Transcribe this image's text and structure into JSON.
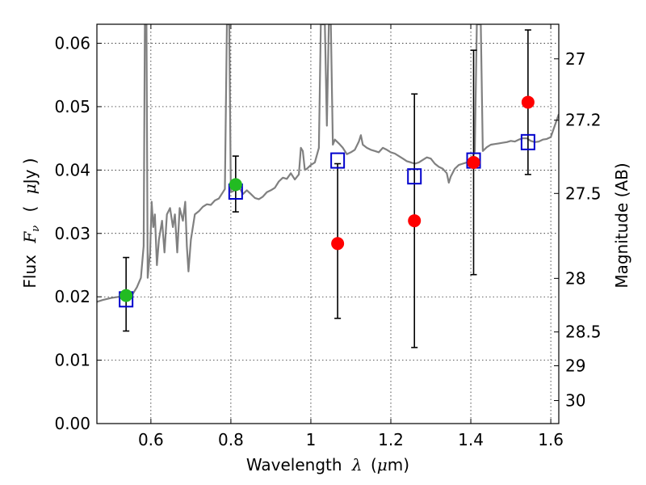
{
  "chart_data": {
    "type": "scatter",
    "xlabel": "Wavelength",
    "xlabel_symbol": "λ",
    "xlabel_unit_open": "(",
    "xlabel_unit_mu": "μ",
    "xlabel_unit_rest": "m)",
    "ylabel_prefix": "Flux",
    "ylabel_symbol": "F",
    "ylabel_subscript": "ν",
    "ylabel_unit_open": "(",
    "ylabel_unit_mu": "μ",
    "ylabel_unit_rest": "Jy )",
    "y2label": "Magnitude (AB)",
    "xlim": [
      0.465,
      1.62
    ],
    "ylim": [
      0.0,
      0.063
    ],
    "grid": true,
    "x_ticks": [
      {
        "value": 0.6,
        "label": "0.6"
      },
      {
        "value": 0.8,
        "label": "0.8"
      },
      {
        "value": 1.0,
        "label": "1"
      },
      {
        "value": 1.2,
        "label": "1.2"
      },
      {
        "value": 1.4,
        "label": "1.4"
      },
      {
        "value": 1.6,
        "label": "1.6"
      }
    ],
    "y_ticks": [
      {
        "value": 0.0,
        "label": "0.00"
      },
      {
        "value": 0.01,
        "label": "0.01"
      },
      {
        "value": 0.02,
        "label": "0.02"
      },
      {
        "value": 0.03,
        "label": "0.03"
      },
      {
        "value": 0.04,
        "label": "0.04"
      },
      {
        "value": 0.05,
        "label": "0.05"
      },
      {
        "value": 0.06,
        "label": "0.06"
      }
    ],
    "y2_ticks": [
      {
        "mag": 27.0,
        "label": "27"
      },
      {
        "mag": 27.2,
        "label": "27.2"
      },
      {
        "mag": 27.5,
        "label": "27.5"
      },
      {
        "mag": 28.0,
        "label": "28"
      },
      {
        "mag": 28.5,
        "label": "28.5"
      },
      {
        "mag": 29.0,
        "label": "29"
      },
      {
        "mag": 30.0,
        "label": "30"
      }
    ],
    "colors": {
      "spectrum": "#808080",
      "green_points": "#22bb22",
      "red_points": "#ff0000",
      "model_squares": "#0000cc",
      "error_bars": "#000000"
    },
    "series": [
      {
        "name": "model spectrum",
        "kind": "line",
        "points": [
          [
            0.465,
            0.0192
          ],
          [
            0.48,
            0.0195
          ],
          [
            0.5,
            0.0198
          ],
          [
            0.52,
            0.02
          ],
          [
            0.54,
            0.0201
          ],
          [
            0.555,
            0.0205
          ],
          [
            0.565,
            0.0215
          ],
          [
            0.575,
            0.023
          ],
          [
            0.582,
            0.028
          ],
          [
            0.585,
            0.063
          ],
          [
            0.589,
            0.063
          ],
          [
            0.592,
            0.023
          ],
          [
            0.598,
            0.027
          ],
          [
            0.602,
            0.035
          ],
          [
            0.606,
            0.031
          ],
          [
            0.61,
            0.033
          ],
          [
            0.615,
            0.025
          ],
          [
            0.62,
            0.029
          ],
          [
            0.628,
            0.032
          ],
          [
            0.634,
            0.027
          ],
          [
            0.64,
            0.033
          ],
          [
            0.648,
            0.034
          ],
          [
            0.655,
            0.031
          ],
          [
            0.66,
            0.033
          ],
          [
            0.666,
            0.027
          ],
          [
            0.672,
            0.034
          ],
          [
            0.68,
            0.032
          ],
          [
            0.686,
            0.035
          ],
          [
            0.69,
            0.028
          ],
          [
            0.694,
            0.024
          ],
          [
            0.7,
            0.029
          ],
          [
            0.71,
            0.033
          ],
          [
            0.72,
            0.0335
          ],
          [
            0.73,
            0.0342
          ],
          [
            0.74,
            0.0346
          ],
          [
            0.75,
            0.0345
          ],
          [
            0.76,
            0.0352
          ],
          [
            0.77,
            0.0355
          ],
          [
            0.78,
            0.0365
          ],
          [
            0.785,
            0.037
          ],
          [
            0.79,
            0.063
          ],
          [
            0.796,
            0.063
          ],
          [
            0.8,
            0.0365
          ],
          [
            0.81,
            0.0368
          ],
          [
            0.82,
            0.0374
          ],
          [
            0.83,
            0.0362
          ],
          [
            0.84,
            0.0368
          ],
          [
            0.85,
            0.0362
          ],
          [
            0.86,
            0.0356
          ],
          [
            0.87,
            0.0354
          ],
          [
            0.88,
            0.0358
          ],
          [
            0.89,
            0.0365
          ],
          [
            0.9,
            0.0368
          ],
          [
            0.91,
            0.0372
          ],
          [
            0.92,
            0.0382
          ],
          [
            0.93,
            0.0388
          ],
          [
            0.94,
            0.0386
          ],
          [
            0.95,
            0.0395
          ],
          [
            0.96,
            0.0385
          ],
          [
            0.97,
            0.0393
          ],
          [
            0.975,
            0.0435
          ],
          [
            0.98,
            0.043
          ],
          [
            0.985,
            0.04
          ],
          [
            0.99,
            0.0402
          ],
          [
            1.0,
            0.0408
          ],
          [
            1.01,
            0.0412
          ],
          [
            1.02,
            0.0435
          ],
          [
            1.025,
            0.063
          ],
          [
            1.035,
            0.063
          ],
          [
            1.04,
            0.047
          ],
          [
            1.045,
            0.063
          ],
          [
            1.05,
            0.063
          ],
          [
            1.055,
            0.044
          ],
          [
            1.06,
            0.0448
          ],
          [
            1.07,
            0.0442
          ],
          [
            1.08,
            0.0435
          ],
          [
            1.09,
            0.0425
          ],
          [
            1.1,
            0.0428
          ],
          [
            1.11,
            0.0432
          ],
          [
            1.12,
            0.0445
          ],
          [
            1.125,
            0.0455
          ],
          [
            1.13,
            0.044
          ],
          [
            1.14,
            0.0435
          ],
          [
            1.15,
            0.0432
          ],
          [
            1.16,
            0.043
          ],
          [
            1.17,
            0.0428
          ],
          [
            1.18,
            0.0435
          ],
          [
            1.19,
            0.0432
          ],
          [
            1.2,
            0.0428
          ],
          [
            1.21,
            0.0426
          ],
          [
            1.22,
            0.0422
          ],
          [
            1.23,
            0.0418
          ],
          [
            1.24,
            0.0414
          ],
          [
            1.25,
            0.0412
          ],
          [
            1.26,
            0.041
          ],
          [
            1.27,
            0.0412
          ],
          [
            1.28,
            0.0416
          ],
          [
            1.29,
            0.042
          ],
          [
            1.3,
            0.0418
          ],
          [
            1.31,
            0.041
          ],
          [
            1.32,
            0.0405
          ],
          [
            1.33,
            0.0402
          ],
          [
            1.34,
            0.0395
          ],
          [
            1.345,
            0.038
          ],
          [
            1.35,
            0.039
          ],
          [
            1.36,
            0.0402
          ],
          [
            1.37,
            0.0408
          ],
          [
            1.38,
            0.041
          ],
          [
            1.39,
            0.0412
          ],
          [
            1.4,
            0.0412
          ],
          [
            1.41,
            0.043
          ],
          [
            1.415,
            0.063
          ],
          [
            1.425,
            0.063
          ],
          [
            1.43,
            0.043
          ],
          [
            1.44,
            0.0436
          ],
          [
            1.45,
            0.044
          ],
          [
            1.46,
            0.0441
          ],
          [
            1.47,
            0.0442
          ],
          [
            1.48,
            0.0443
          ],
          [
            1.49,
            0.0444
          ],
          [
            1.5,
            0.0446
          ],
          [
            1.51,
            0.0445
          ],
          [
            1.52,
            0.0448
          ],
          [
            1.53,
            0.045
          ],
          [
            1.54,
            0.045
          ],
          [
            1.55,
            0.0446
          ],
          [
            1.56,
            0.0444
          ],
          [
            1.57,
            0.0445
          ],
          [
            1.58,
            0.0448
          ],
          [
            1.59,
            0.0449
          ],
          [
            1.6,
            0.0452
          ],
          [
            1.61,
            0.047
          ],
          [
            1.62,
            0.0488
          ]
        ]
      },
      {
        "name": "green photometry",
        "kind": "circle",
        "points": [
          {
            "x": 0.538,
            "y": 0.0202,
            "ylo": 0.0146,
            "yhi": 0.0262
          },
          {
            "x": 0.812,
            "y": 0.0377,
            "ylo": 0.0334,
            "yhi": 0.0422
          }
        ]
      },
      {
        "name": "red photometry",
        "kind": "circle",
        "points": [
          {
            "x": 1.067,
            "y": 0.0284,
            "ylo": 0.0166,
            "yhi": 0.041
          },
          {
            "x": 1.259,
            "y": 0.032,
            "ylo": 0.012,
            "yhi": 0.052
          },
          {
            "x": 1.407,
            "y": 0.0412,
            "ylo": 0.0235,
            "yhi": 0.0589
          },
          {
            "x": 1.543,
            "y": 0.0507,
            "ylo": 0.0393,
            "yhi": 0.0621
          }
        ]
      },
      {
        "name": "model synthetic photometry",
        "kind": "square",
        "points": [
          {
            "x": 0.538,
            "y": 0.0196
          },
          {
            "x": 0.812,
            "y": 0.0366
          },
          {
            "x": 1.067,
            "y": 0.0415
          },
          {
            "x": 1.259,
            "y": 0.039
          },
          {
            "x": 1.407,
            "y": 0.0415
          },
          {
            "x": 1.543,
            "y": 0.0444
          }
        ]
      }
    ]
  }
}
